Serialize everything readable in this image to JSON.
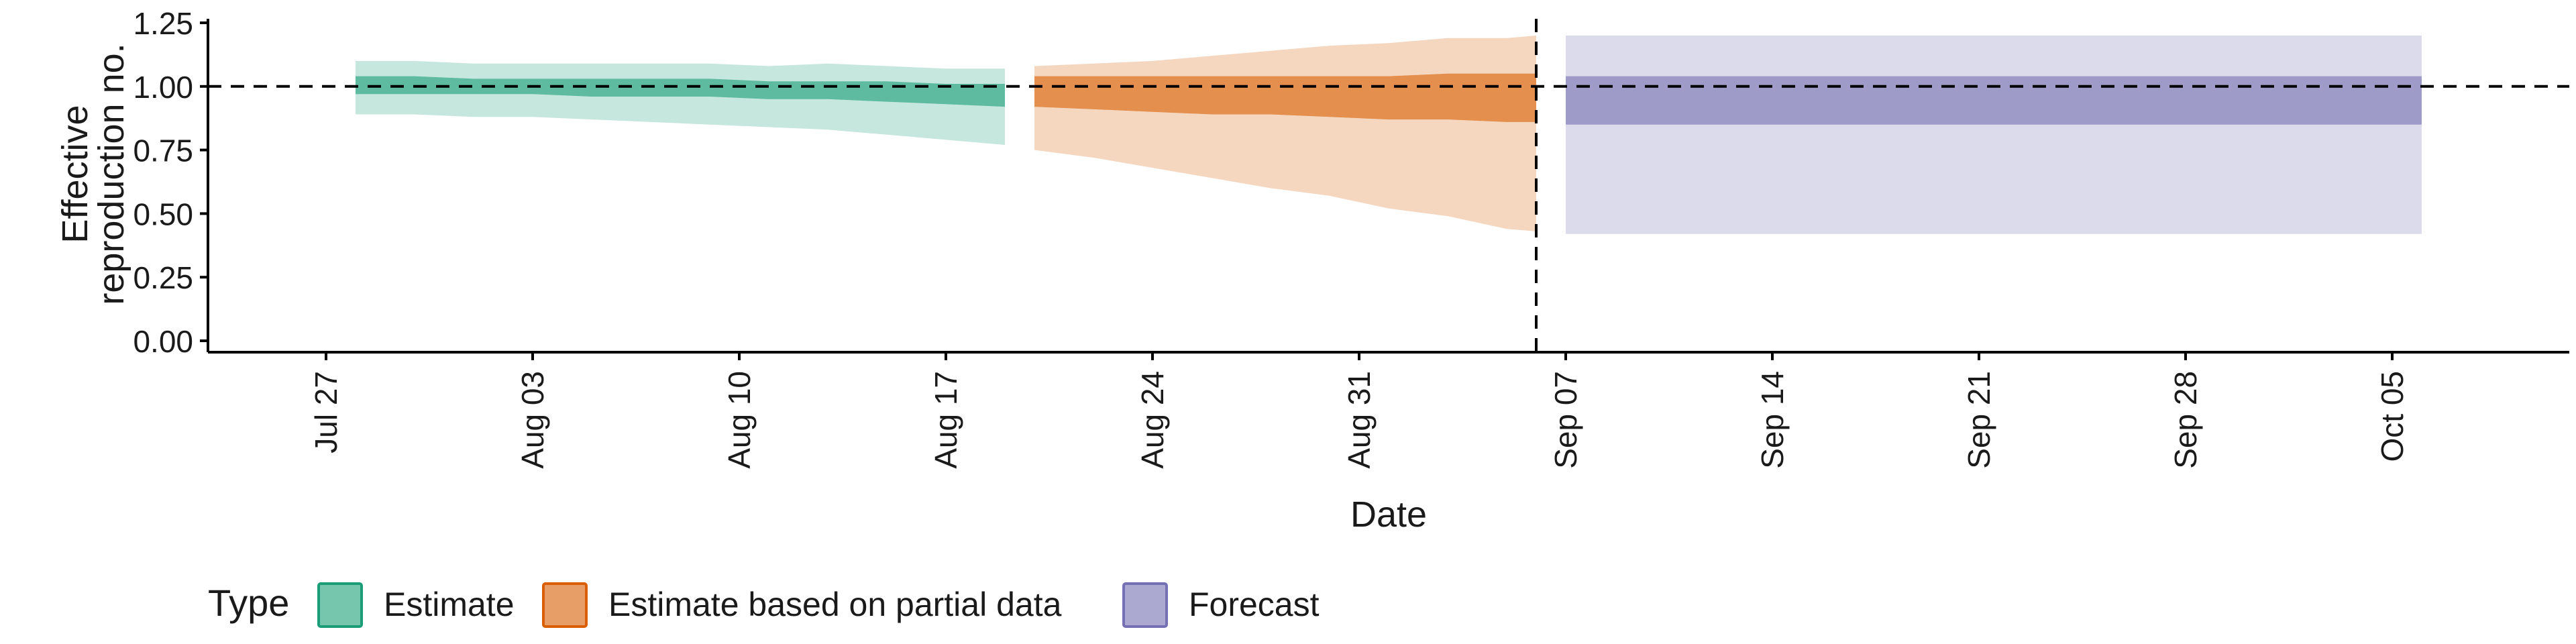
{
  "chart_data": {
    "type": "area",
    "title": "",
    "xlabel": "Date",
    "ylabel_lines": [
      "Effective",
      "reproduction no."
    ],
    "ylim": [
      0,
      1.25
    ],
    "yticks": [
      0,
      0.25,
      0.5,
      0.75,
      1.0,
      1.25
    ],
    "ytick_labels": [
      "0.00",
      "0.25",
      "0.50",
      "0.75",
      "1.00",
      "1.25"
    ],
    "xlim": [
      "2020-07-23",
      "2020-10-11"
    ],
    "xticks": [
      "2020-07-27",
      "2020-08-03",
      "2020-08-10",
      "2020-08-17",
      "2020-08-24",
      "2020-08-31",
      "2020-09-07",
      "2020-09-14",
      "2020-09-21",
      "2020-09-28",
      "2020-10-05"
    ],
    "xtick_labels": [
      "Jul 27",
      "Aug 03",
      "Aug 10",
      "Aug 17",
      "Aug 24",
      "Aug 31",
      "Sep 07",
      "Sep 14",
      "Sep 21",
      "Sep 28",
      "Oct 05"
    ],
    "hline": 1.0,
    "vline": "2020-09-06",
    "grid": false,
    "legend": {
      "position": "bottom",
      "title": "Type",
      "entries": [
        "Estimate",
        "Estimate based on partial data",
        "Forecast"
      ]
    },
    "colors": {
      "Estimate": "#1b9e77",
      "Estimate based on partial data": "#d95f02",
      "Forecast": "#7570b3"
    },
    "series": [
      {
        "name": "Estimate",
        "x": [
          "2020-07-28",
          "2020-07-30",
          "2020-08-01",
          "2020-08-03",
          "2020-08-05",
          "2020-08-07",
          "2020-08-09",
          "2020-08-11",
          "2020-08-13",
          "2020-08-15",
          "2020-08-17",
          "2020-08-19"
        ],
        "inner_lower": [
          0.97,
          0.97,
          0.97,
          0.97,
          0.96,
          0.96,
          0.96,
          0.95,
          0.95,
          0.94,
          0.93,
          0.92
        ],
        "inner_upper": [
          1.04,
          1.04,
          1.03,
          1.03,
          1.03,
          1.03,
          1.03,
          1.02,
          1.02,
          1.02,
          1.01,
          1.01
        ],
        "outer_lower": [
          0.89,
          0.89,
          0.88,
          0.88,
          0.87,
          0.86,
          0.85,
          0.84,
          0.83,
          0.81,
          0.79,
          0.77
        ],
        "outer_upper": [
          1.1,
          1.1,
          1.09,
          1.09,
          1.09,
          1.09,
          1.09,
          1.08,
          1.09,
          1.08,
          1.07,
          1.07
        ]
      },
      {
        "name": "Estimate based on partial data",
        "x": [
          "2020-08-20",
          "2020-08-22",
          "2020-08-24",
          "2020-08-26",
          "2020-08-28",
          "2020-08-30",
          "2020-09-01",
          "2020-09-03",
          "2020-09-05",
          "2020-09-06"
        ],
        "inner_lower": [
          0.92,
          0.91,
          0.9,
          0.89,
          0.89,
          0.88,
          0.87,
          0.87,
          0.86,
          0.86
        ],
        "inner_upper": [
          1.04,
          1.04,
          1.04,
          1.04,
          1.04,
          1.04,
          1.04,
          1.05,
          1.05,
          1.05
        ],
        "outer_lower": [
          0.75,
          0.72,
          0.68,
          0.64,
          0.6,
          0.57,
          0.52,
          0.49,
          0.44,
          0.43
        ],
        "outer_upper": [
          1.08,
          1.09,
          1.1,
          1.12,
          1.14,
          1.16,
          1.17,
          1.19,
          1.19,
          1.2
        ]
      },
      {
        "name": "Forecast",
        "x": [
          "2020-09-07",
          "2020-10-06"
        ],
        "inner_lower": [
          0.85,
          0.85
        ],
        "inner_upper": [
          1.04,
          1.04
        ],
        "outer_lower": [
          0.42,
          0.42
        ],
        "outer_upper": [
          1.2,
          1.2
        ]
      }
    ]
  }
}
